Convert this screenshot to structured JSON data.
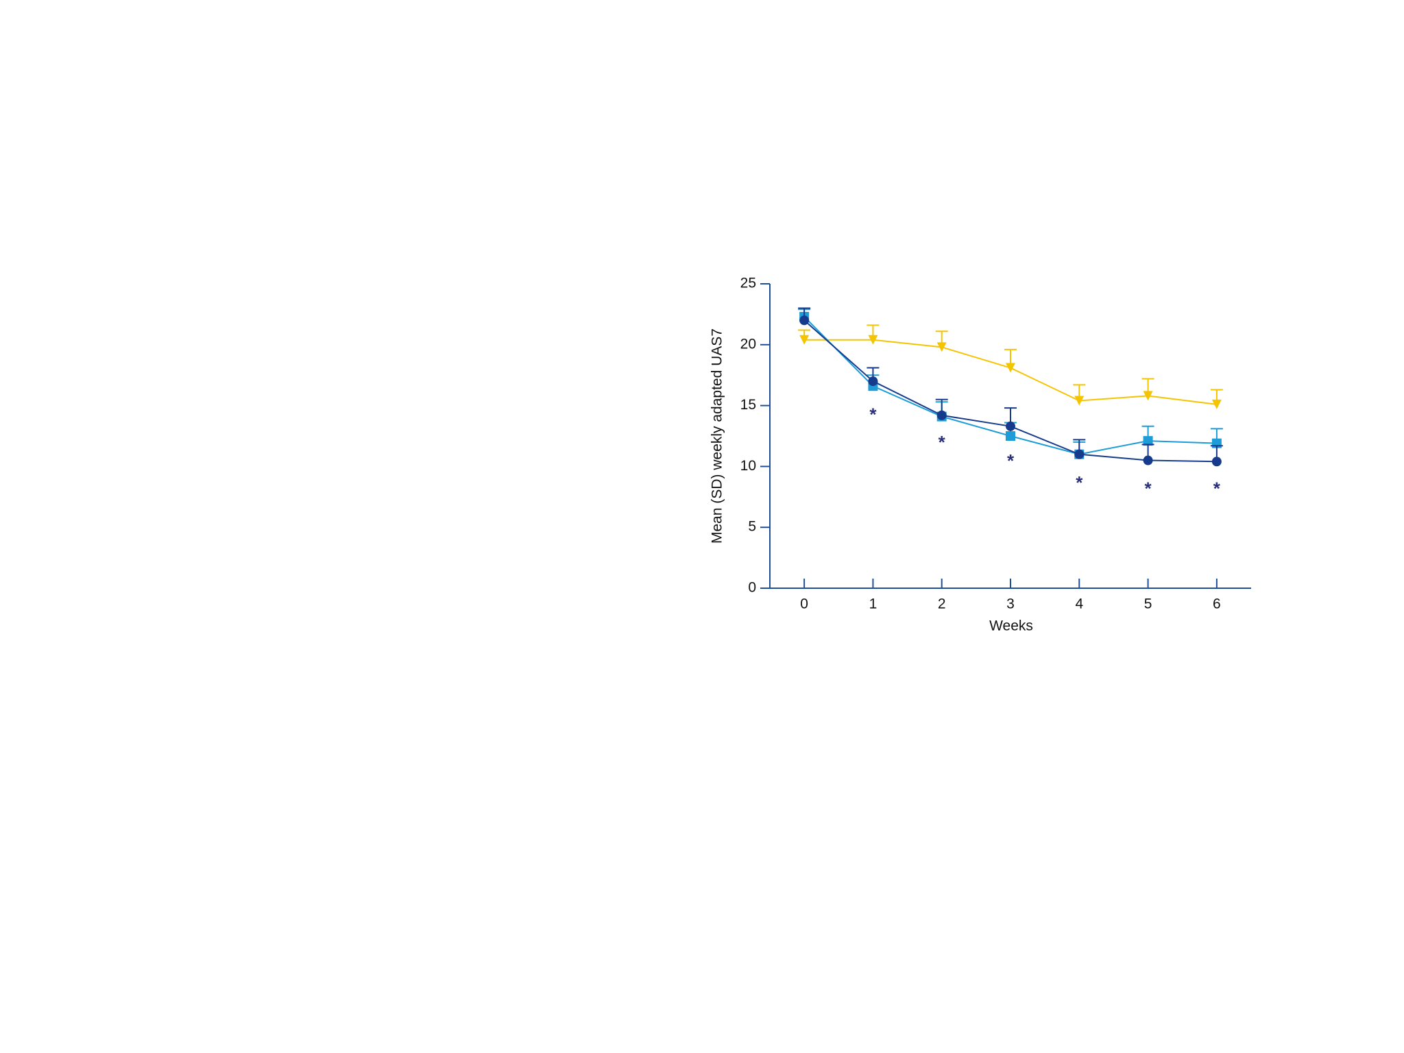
{
  "chart_data": {
    "type": "line",
    "x_label": "Weeks",
    "y_label": "Mean (SD) weekly adapted UAS7",
    "x": [
      0,
      1,
      2,
      3,
      4,
      5,
      6
    ],
    "xlim": [
      -0.5,
      6.5
    ],
    "xticks": [
      0,
      1,
      2,
      3,
      4,
      5,
      6
    ],
    "ylim": [
      0,
      25
    ],
    "yticks": [
      0,
      5,
      10,
      15,
      20,
      25
    ],
    "axis_color": "#1f4e9a",
    "series": [
      {
        "color": "#f5c400",
        "marker": "triangle-down",
        "values": [
          20.4,
          20.4,
          19.8,
          18.1,
          15.4,
          15.8,
          15.1
        ],
        "errors": [
          0.8,
          1.2,
          1.3,
          1.5,
          1.3,
          1.4,
          1.2
        ]
      },
      {
        "color": "#1e9cd7",
        "marker": "square",
        "values": [
          22.3,
          16.6,
          14.1,
          12.5,
          11.0,
          12.1,
          11.9
        ],
        "errors": [
          0.6,
          0.9,
          1.2,
          1.1,
          1.0,
          1.2,
          1.2
        ]
      },
      {
        "color": "#163a8c",
        "marker": "circle",
        "values": [
          22.0,
          17.0,
          14.2,
          13.3,
          11.0,
          10.5,
          10.4
        ],
        "errors": [
          1.0,
          1.1,
          1.3,
          1.5,
          1.2,
          1.3,
          1.3
        ]
      }
    ],
    "annotations": [
      {
        "x": 1,
        "y": 14.5,
        "text": "*"
      },
      {
        "x": 2,
        "y": 12.2,
        "text": "*"
      },
      {
        "x": 3,
        "y": 10.7,
        "text": "*"
      },
      {
        "x": 4,
        "y": 8.9,
        "text": "*"
      },
      {
        "x": 5,
        "y": 8.4,
        "text": "*"
      },
      {
        "x": 6,
        "y": 8.4,
        "text": "*"
      }
    ]
  }
}
